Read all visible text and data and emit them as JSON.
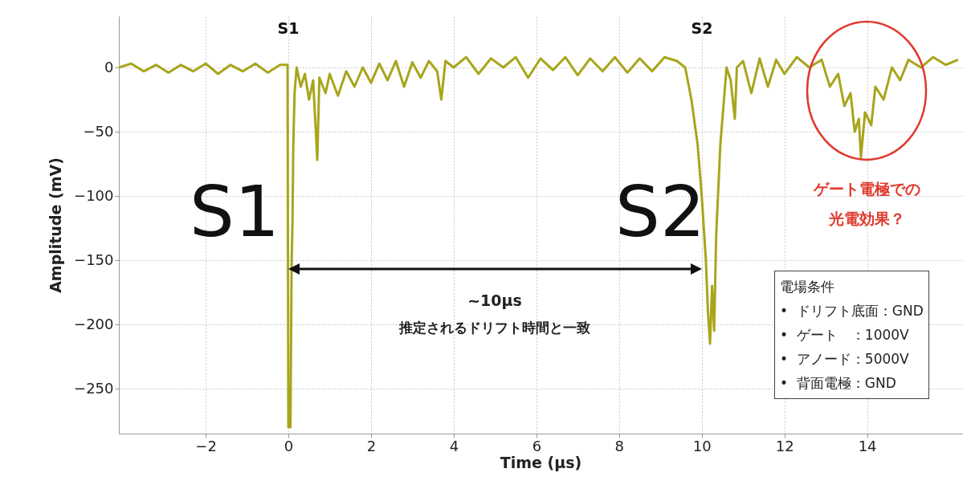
{
  "chart_data": {
    "type": "line",
    "xlabel": "Time (μs)",
    "ylabel": "Amplitude (mV)",
    "xlim": [
      -4.1,
      16.3
    ],
    "ylim": [
      -285,
      40
    ],
    "xticks": [
      -2,
      0,
      2,
      4,
      6,
      8,
      10,
      12,
      14
    ],
    "yticks": [
      -250,
      -200,
      -150,
      -100,
      -50,
      0
    ],
    "grid": true,
    "series": [
      {
        "color": "#a8a51c",
        "x": [
          -4.1,
          -3.8,
          -3.5,
          -3.2,
          -2.9,
          -2.6,
          -2.3,
          -2,
          -1.7,
          -1.4,
          -1.1,
          -0.8,
          -0.5,
          -0.2,
          -0.02,
          0,
          0.05,
          0.08,
          0.1,
          0.12,
          0.15,
          0.2,
          0.3,
          0.4,
          0.5,
          0.6,
          0.7,
          0.75,
          0.9,
          1.0,
          1.2,
          1.4,
          1.6,
          1.8,
          2.0,
          2.2,
          2.4,
          2.6,
          2.8,
          3.0,
          3.2,
          3.4,
          3.6,
          3.7,
          3.8,
          4.0,
          4.3,
          4.6,
          4.9,
          5.2,
          5.5,
          5.8,
          6.1,
          6.4,
          6.7,
          7.0,
          7.3,
          7.6,
          7.9,
          8.2,
          8.5,
          8.8,
          9.1,
          9.4,
          9.6,
          9.75,
          9.9,
          10.0,
          10.1,
          10.15,
          10.2,
          10.25,
          10.3,
          10.35,
          10.45,
          10.55,
          10.6,
          10.7,
          10.8,
          10.85,
          11.0,
          11.2,
          11.4,
          11.6,
          11.8,
          12.0,
          12.3,
          12.6,
          12.9,
          13.1,
          13.3,
          13.45,
          13.6,
          13.7,
          13.8,
          13.85,
          13.95,
          14.1,
          14.2,
          14.4,
          14.6,
          14.8,
          15.0,
          15.3,
          15.6,
          15.9,
          16.2
        ],
        "values": [
          0,
          3,
          -3,
          2,
          -4,
          2,
          -3,
          3,
          -5,
          2,
          -3,
          3,
          -4,
          2,
          2,
          -280,
          -280,
          -150,
          -120,
          -60,
          -20,
          0,
          -15,
          -5,
          -25,
          -10,
          -72,
          -8,
          -20,
          -5,
          -22,
          -3,
          -15,
          0,
          -12,
          3,
          -10,
          5,
          -15,
          4,
          -8,
          5,
          -3,
          -25,
          5,
          0,
          8,
          -5,
          7,
          0,
          8,
          -8,
          7,
          -2,
          8,
          -6,
          7,
          -3,
          8,
          -4,
          7,
          -3,
          8,
          5,
          0,
          -25,
          -60,
          -100,
          -150,
          -190,
          -215,
          -170,
          -205,
          -130,
          -60,
          -20,
          0,
          -10,
          -40,
          0,
          5,
          -20,
          7,
          -15,
          6,
          -5,
          8,
          0,
          6,
          -15,
          -5,
          -30,
          -20,
          -50,
          -40,
          -70,
          -35,
          -45,
          -15,
          -25,
          0,
          -10,
          6,
          0,
          8,
          2,
          6
        ]
      }
    ],
    "annotations": [
      "S1",
      "S2",
      "S1",
      "S2",
      "~10μs",
      "推定されるドリフト時間と一致",
      "ゲート電極での",
      "光電効果？",
      "電場条件",
      "•  ドリフト底面：GND",
      "•  ゲート　：1000V",
      "•  アノード：5000V",
      "•  背面電極：GND"
    ]
  }
}
